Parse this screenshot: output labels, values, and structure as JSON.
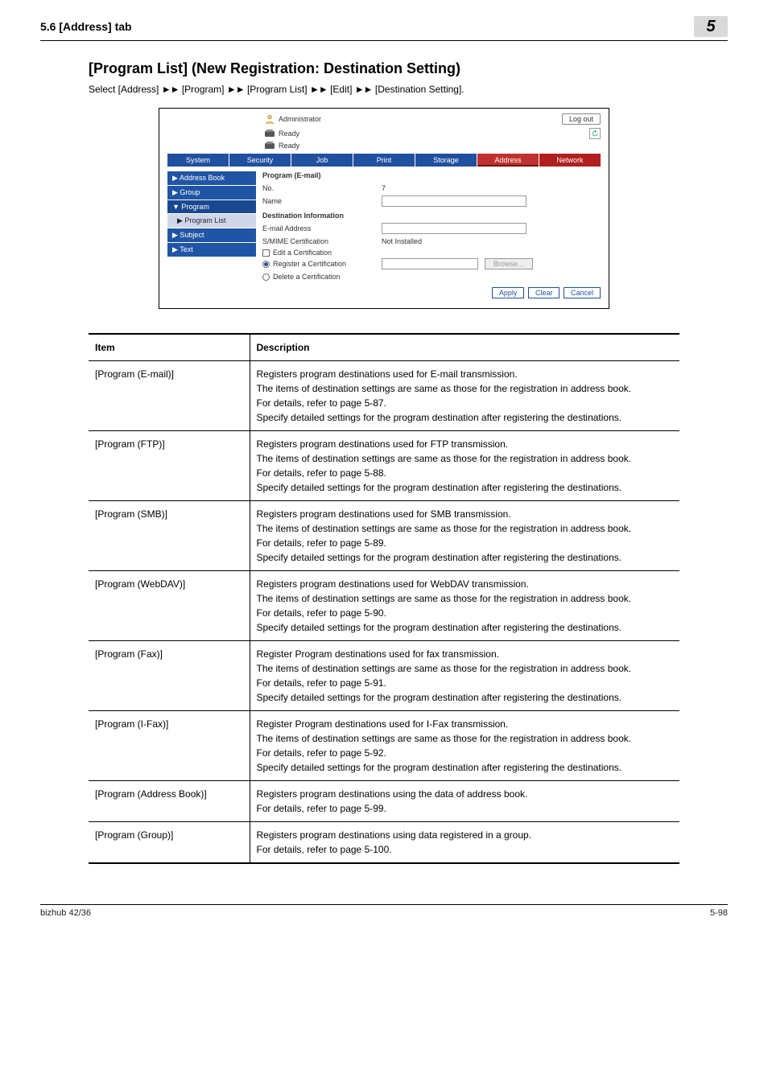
{
  "header": {
    "left": "5.6      [Address] tab",
    "chapter": "5"
  },
  "title": "[Program List] (New Registration: Destination Setting)",
  "breadcrumb_parts": [
    "Select [Address] ",
    " [Program] ",
    " [Program List] ",
    " [Edit] ",
    " [Destination Setting]."
  ],
  "ui": {
    "admin": "Administrator",
    "logout": "Log out",
    "ready": "Ready",
    "tabs": [
      "System",
      "Security",
      "Job",
      "Print",
      "Storage",
      "Address",
      "Network"
    ],
    "active_tab_index": 5,
    "side": {
      "items": [
        "Address Book",
        "Group",
        "Program",
        "Subject",
        "Text"
      ],
      "sub": "Program List",
      "expanded_index": 2
    },
    "form": {
      "title": "Program (E-mail)",
      "no_label": "No.",
      "no_value": "7",
      "name_label": "Name",
      "dest_header": "Destination Information",
      "email_label": "E-mail Address",
      "smime_label": "S/MIME Certification",
      "smime_value": "Not Installed",
      "edit_cert": "Edit a Certification",
      "reg_cert": "Register a Certification",
      "del_cert": "Delete a Certification",
      "browse": "Browse...",
      "apply": "Apply",
      "clear": "Clear",
      "cancel": "Cancel"
    }
  },
  "table": {
    "head_item": "Item",
    "head_desc": "Description",
    "rows": [
      {
        "item": "[Program (E-mail)]",
        "desc": "Registers program destinations used for E-mail transmission.\nThe items of destination settings are same as those for the registration in address book.\nFor details, refer to page 5-87.\nSpecify detailed settings for the program destination after registering the destinations."
      },
      {
        "item": "[Program (FTP)]",
        "desc": "Registers program destinations used for FTP transmission.\nThe items of destination settings are same as those for the registration in address book.\nFor details, refer to page 5-88.\nSpecify detailed settings for the program destination after registering the destinations."
      },
      {
        "item": "[Program (SMB)]",
        "desc": "Registers program destinations used for SMB transmission.\nThe items of destination settings are same as those for the registration in address book.\nFor details, refer to page 5-89.\nSpecify detailed settings for the program destination after registering the destinations."
      },
      {
        "item": "[Program (WebDAV)]",
        "desc": "Registers program destinations used for WebDAV transmission.\nThe items of destination settings are same as those for the registration in address book.\nFor details, refer to page 5-90.\nSpecify detailed settings for the program destination after registering the destinations."
      },
      {
        "item": "[Program (Fax)]",
        "desc": "Register Program destinations used for fax transmission.\nThe items of destination settings are same as those for the registration in address book.\nFor details, refer to page 5-91.\nSpecify detailed settings for the program destination after registering the destinations."
      },
      {
        "item": "[Program (I-Fax)]",
        "desc": "Register Program destinations used for I-Fax transmission.\nThe items of destination settings are same as those for the registration in address book.\nFor details, refer to page 5-92.\nSpecify detailed settings for the program destination after registering the destinations."
      },
      {
        "item": "[Program (Address Book)]",
        "desc": "Registers program destinations using the data of address book.\nFor details, refer to page 5-99."
      },
      {
        "item": "[Program (Group)]",
        "desc": "Registers program destinations using data registered in a group.\nFor details, refer to page 5-100."
      }
    ]
  },
  "footer": {
    "left": "bizhub 42/36",
    "right": "5-98"
  }
}
